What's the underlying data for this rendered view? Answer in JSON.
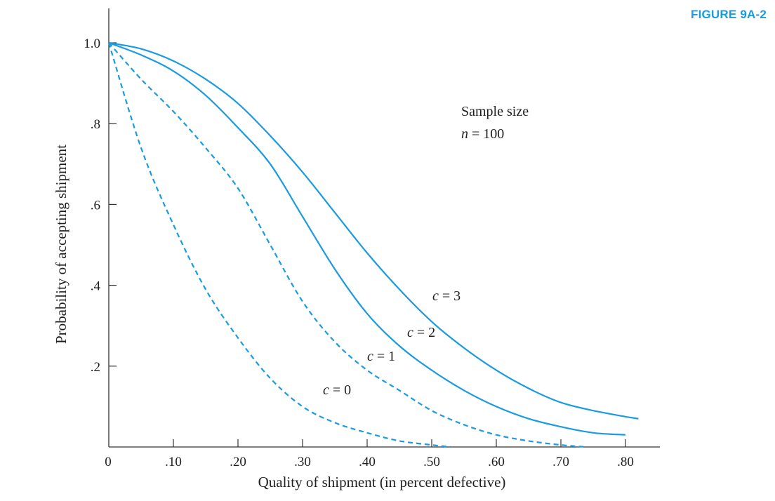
{
  "figure_label": "FIGURE 9A-2",
  "colors": {
    "curve": "#1a9be0",
    "axis": "#333333",
    "text": "#1f1f1f",
    "label_accent": "#1a9be0"
  },
  "chart_data": {
    "type": "line",
    "xlabel": "Quality of shipment (in percent defective)",
    "ylabel": "Probability of accepting shipment",
    "xlim": [
      0,
      0.85
    ],
    "ylim": [
      0,
      1.05
    ],
    "x_ticks": [
      {
        "value": 0,
        "label": "0"
      },
      {
        "value": 0.1,
        "label": ".10"
      },
      {
        "value": 0.2,
        "label": ".20"
      },
      {
        "value": 0.3,
        "label": ".30"
      },
      {
        "value": 0.4,
        "label": ".40"
      },
      {
        "value": 0.5,
        "label": ".50"
      },
      {
        "value": 0.6,
        "label": ".60"
      },
      {
        "value": 0.7,
        "label": ".70"
      },
      {
        "value": 0.8,
        "label": ".80"
      }
    ],
    "y_ticks": [
      {
        "value": 0.2,
        "label": ".2"
      },
      {
        "value": 0.4,
        "label": ".4"
      },
      {
        "value": 0.6,
        "label": ".6"
      },
      {
        "value": 0.8,
        "label": ".8"
      },
      {
        "value": 1.0,
        "label": "1.0"
      }
    ],
    "grid": false,
    "legend": "none",
    "annotation": {
      "line1": "Sample size",
      "line2_var": "n",
      "line2_rest": " = 100"
    },
    "series": [
      {
        "label_var": "c",
        "label_rest": " = 0",
        "dashed": true,
        "x": [
          0,
          0.05,
          0.1,
          0.15,
          0.2,
          0.25,
          0.3,
          0.35,
          0.4,
          0.45,
          0.5,
          0.53
        ],
        "y": [
          1.0,
          0.74,
          0.55,
          0.39,
          0.27,
          0.17,
          0.1,
          0.06,
          0.035,
          0.015,
          0.005,
          0.0
        ]
      },
      {
        "label_var": "c",
        "label_rest": " = 1",
        "dashed": true,
        "x": [
          0,
          0.05,
          0.1,
          0.15,
          0.2,
          0.25,
          0.3,
          0.35,
          0.4,
          0.45,
          0.5,
          0.55,
          0.6,
          0.65,
          0.7,
          0.74
        ],
        "y": [
          1.0,
          0.91,
          0.83,
          0.74,
          0.64,
          0.5,
          0.36,
          0.26,
          0.19,
          0.14,
          0.09,
          0.055,
          0.03,
          0.015,
          0.005,
          0.0
        ]
      },
      {
        "label_var": "c",
        "label_rest": " = 2",
        "dashed": false,
        "x": [
          0,
          0.05,
          0.1,
          0.15,
          0.2,
          0.25,
          0.3,
          0.35,
          0.4,
          0.45,
          0.5,
          0.55,
          0.6,
          0.65,
          0.7,
          0.75,
          0.8
        ],
        "y": [
          1.0,
          0.97,
          0.93,
          0.87,
          0.79,
          0.7,
          0.57,
          0.44,
          0.33,
          0.25,
          0.19,
          0.14,
          0.1,
          0.07,
          0.05,
          0.035,
          0.03
        ]
      },
      {
        "label_var": "c",
        "label_rest": " = 3",
        "dashed": false,
        "x": [
          0,
          0.05,
          0.1,
          0.15,
          0.2,
          0.25,
          0.3,
          0.35,
          0.4,
          0.45,
          0.5,
          0.55,
          0.6,
          0.65,
          0.7,
          0.75,
          0.8,
          0.82
        ],
        "y": [
          1.0,
          0.985,
          0.955,
          0.91,
          0.85,
          0.77,
          0.68,
          0.58,
          0.48,
          0.39,
          0.31,
          0.245,
          0.19,
          0.145,
          0.11,
          0.09,
          0.075,
          0.07
        ]
      }
    ]
  }
}
